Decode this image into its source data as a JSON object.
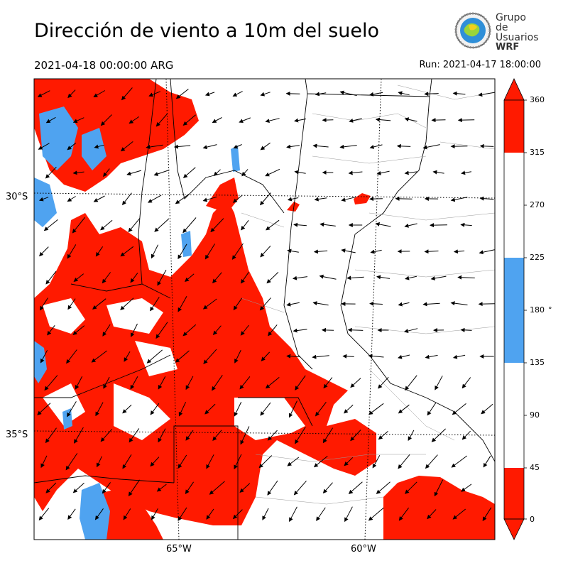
{
  "header": {
    "title": "Dirección de viento a 10m del suelo",
    "valid_time": "2021-04-18 00:00:00 ARG",
    "run_time": "Run: 2021-04-17 18:00:00"
  },
  "logo": {
    "line1": "Grupo de",
    "line2": "Usuarios",
    "line3": "WRF"
  },
  "map": {
    "lat_ticks": [
      "30°S",
      "35°S"
    ],
    "lon_ticks": [
      "65°W",
      "60°W"
    ],
    "gridlines": "dotted",
    "colors": {
      "red": "#ff1a00",
      "blue": "#4fa3f0",
      "white": "#ffffff"
    }
  },
  "colorbar": {
    "ticks": [
      "0",
      "45",
      "90",
      "135",
      "180",
      "225",
      "270",
      "315",
      "360"
    ],
    "unit": "°",
    "bins": [
      {
        "from": 0,
        "to": 45,
        "color": "#ff1a00"
      },
      {
        "from": 45,
        "to": 135,
        "color": "#ffffff"
      },
      {
        "from": 135,
        "to": 225,
        "color": "#4fa3f0"
      },
      {
        "from": 225,
        "to": 315,
        "color": "#ffffff"
      },
      {
        "from": 315,
        "to": 360,
        "color": "#ff1a00"
      }
    ],
    "extend": "both"
  }
}
